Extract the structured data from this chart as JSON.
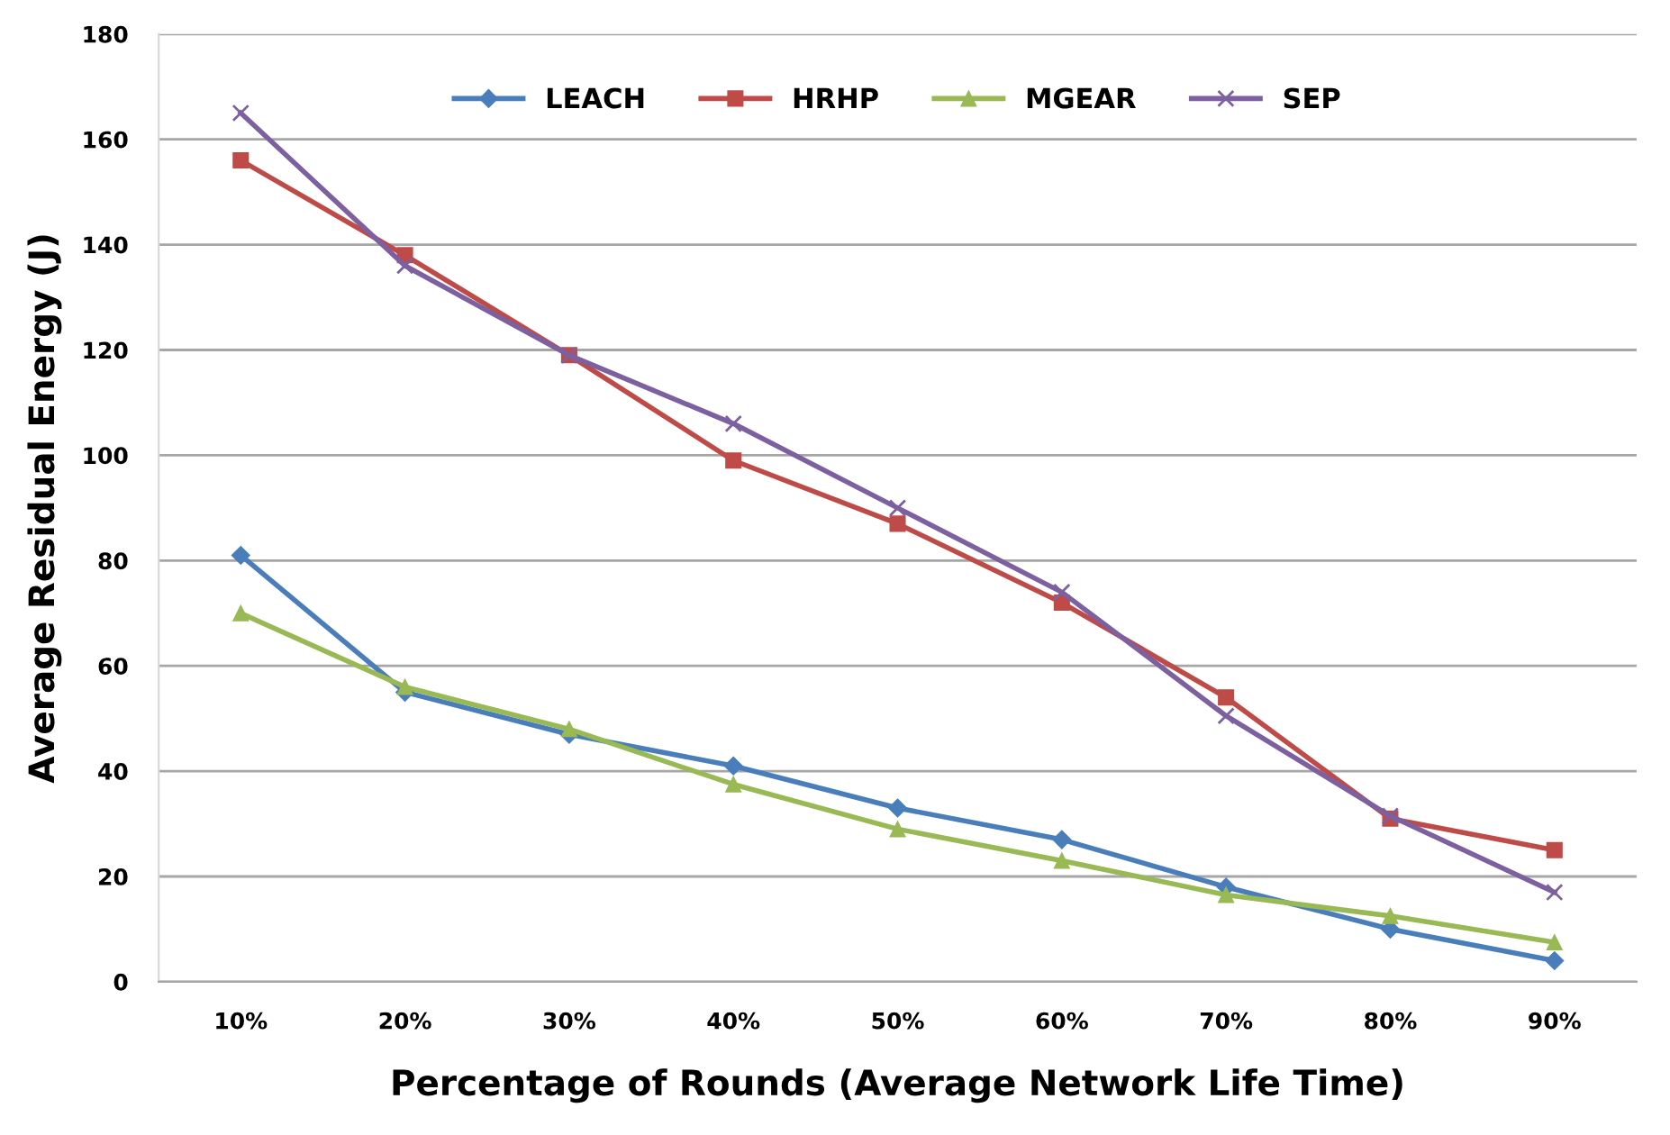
{
  "chart_data": {
    "type": "line",
    "xlabel": "Percentage of Rounds (Average Network Life Time)",
    "ylabel": "Average Residual Energy (J)",
    "categories": [
      "10%",
      "20%",
      "30%",
      "40%",
      "50%",
      "60%",
      "70%",
      "80%",
      "90%"
    ],
    "series": [
      {
        "name": "LEACH",
        "color": "#4a7ebb",
        "marker": "diamond",
        "values": [
          81,
          55,
          47,
          41,
          33,
          27,
          18,
          10,
          4
        ]
      },
      {
        "name": "HRHP",
        "color": "#be4b48",
        "marker": "square",
        "values": [
          156,
          138,
          119,
          99,
          87,
          72,
          54,
          31,
          25
        ]
      },
      {
        "name": "MGEAR",
        "color": "#98b954",
        "marker": "triangle",
        "values": [
          70,
          56,
          48,
          37.5,
          29,
          23,
          16.5,
          12.5,
          7.5
        ]
      },
      {
        "name": "SEP",
        "color": "#7d60a0",
        "marker": "cross",
        "values": [
          165,
          136,
          119,
          106,
          90,
          74,
          50.5,
          31.5,
          17
        ]
      }
    ],
    "ylim": [
      0,
      180
    ],
    "yticks": [
      0,
      20,
      40,
      60,
      80,
      100,
      120,
      140,
      160,
      180
    ],
    "grid": "y",
    "legend": "top"
  }
}
